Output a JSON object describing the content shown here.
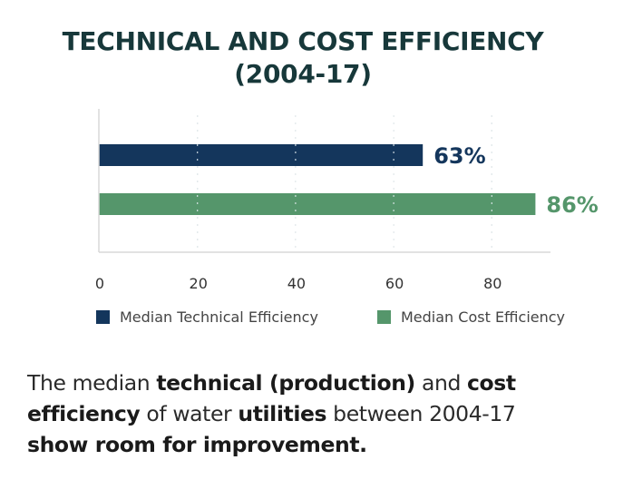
{
  "title": {
    "line1": "TECHNICAL AND COST EFFICIENCY",
    "line2": "(2004-17)"
  },
  "colors": {
    "technical": "#14365c",
    "cost": "#55966b",
    "title": "#17383a",
    "gridline": "#cfcfcf",
    "axis": "#d8d8d8"
  },
  "chart_data": {
    "type": "bar",
    "orientation": "horizontal",
    "title": "TECHNICAL AND COST EFFICIENCY (2004-17)",
    "xlabel": "",
    "ylabel": "",
    "categories": [
      "Median Technical Efficiency",
      "Median Cost Efficiency"
    ],
    "series": [
      {
        "name": "Median Technical Efficiency",
        "values": [
          63
        ],
        "label": "63%",
        "color": "#14365c"
      },
      {
        "name": "Median Cost Efficiency",
        "values": [
          86
        ],
        "label": "86%",
        "color": "#55966b"
      }
    ],
    "xticks": [
      0,
      20,
      40,
      60,
      80
    ],
    "xtick_labels": [
      "0",
      "20",
      "40",
      "60",
      "80"
    ],
    "xlim": [
      0,
      92
    ],
    "grid": "vertical dotted",
    "legend_position": "bottom"
  },
  "legend": [
    {
      "label": "Median Technical Efficiency",
      "color": "#14365c"
    },
    {
      "label": "Median Cost Efficiency",
      "color": "#55966b"
    }
  ],
  "caption": {
    "segments_line1": [
      {
        "text": "The median ",
        "bold": false
      },
      {
        "text": "technical (production)",
        "bold": true
      },
      {
        "text": " and ",
        "bold": false
      },
      {
        "text": "cost",
        "bold": true
      }
    ],
    "segments_line2": [
      {
        "text": "efficiency",
        "bold": true
      },
      {
        "text": " of water ",
        "bold": false
      },
      {
        "text": "utilities",
        "bold": true
      },
      {
        "text": " between 2004-17",
        "bold": false
      }
    ],
    "segments_line3": [
      {
        "text": "show room for improvement.",
        "bold": true
      }
    ]
  }
}
